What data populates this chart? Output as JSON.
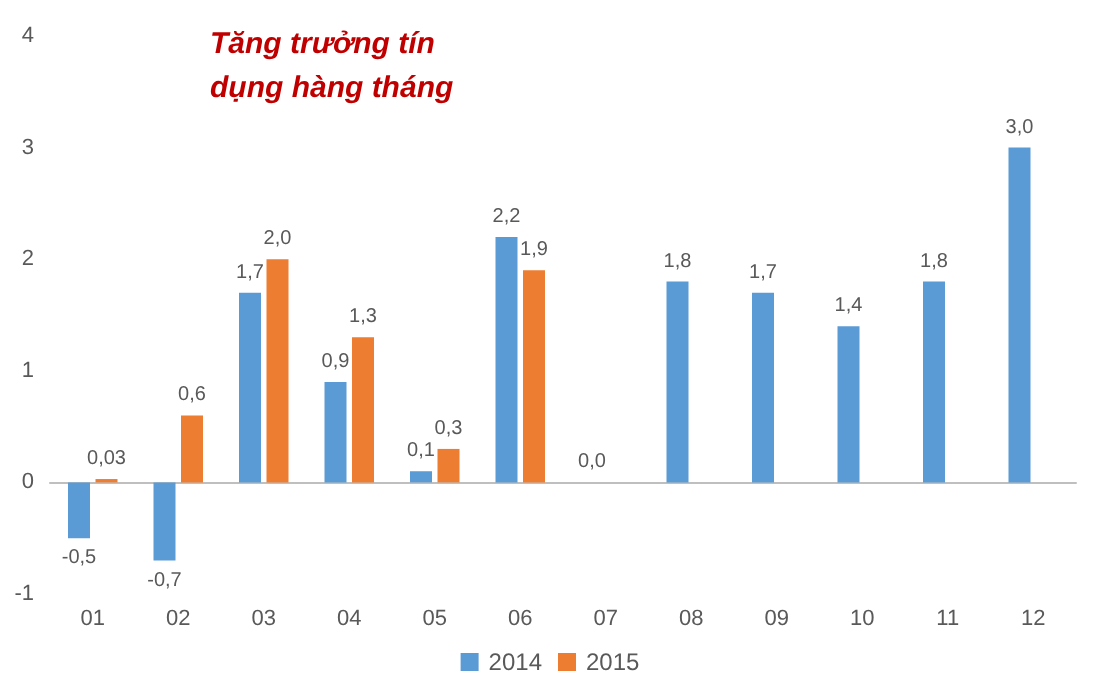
{
  "chart_data": {
    "type": "bar",
    "title": "Tăng trưởng tín dụng hàng tháng",
    "categories": [
      "01",
      "02",
      "03",
      "04",
      "05",
      "06",
      "07",
      "08",
      "09",
      "10",
      "11",
      "12"
    ],
    "series": [
      {
        "name": "2014",
        "color": "#5b9bd5",
        "values": [
          -0.5,
          -0.7,
          1.7,
          0.9,
          0.1,
          2.2,
          0.0,
          1.8,
          1.7,
          1.4,
          1.8,
          3.0
        ],
        "value_labels": [
          "-0,5",
          "-0,7",
          "1,7",
          "0,9",
          "0,1",
          "2,2",
          "0,0",
          "1,8",
          "1,7",
          "1,4",
          "1,8",
          "3,0"
        ]
      },
      {
        "name": "2015",
        "color": "#ed7d31",
        "values": [
          0.03,
          0.6,
          2.0,
          1.3,
          0.3,
          1.9,
          null,
          null,
          null,
          null,
          null,
          null
        ],
        "value_labels": [
          "0,03",
          "0,6",
          "2,0",
          "1,3",
          "0,3",
          "1,9",
          null,
          null,
          null,
          null,
          null,
          null
        ]
      }
    ],
    "ylim": [
      -1,
      4
    ],
    "yticks": [
      -1,
      0,
      1,
      2,
      3,
      4
    ],
    "legend": "bottom"
  }
}
